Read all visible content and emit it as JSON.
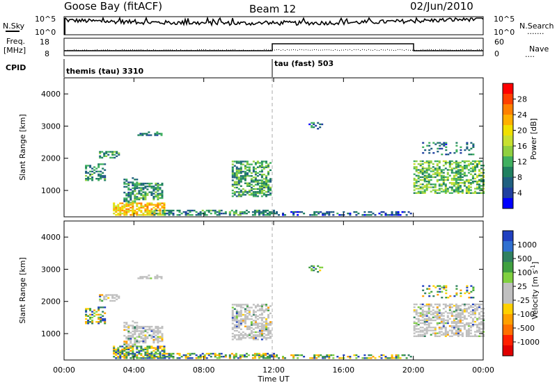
{
  "header": {
    "station": "Goose Bay (fitACF)",
    "beam": "Beam 12",
    "date": "02/Jun/2010"
  },
  "left_labels": {
    "nsky": "N.Sky",
    "freq": "Freq.",
    "freq_unit": "[MHz]",
    "cpid": "CPID"
  },
  "right_labels": {
    "nsearch": "N.Search",
    "nsearch_dots": "·······",
    "nave": "Nave",
    "nave_dots": "····"
  },
  "noise_axis": {
    "left_top": "10^5",
    "left_bottom": "10^0",
    "right_top": "10^5",
    "right_bottom": "10^0"
  },
  "freq_axis": {
    "left_top": "18",
    "left_bottom": "8",
    "right_top": "60",
    "right_bottom": "0"
  },
  "cpid_segments": [
    {
      "label": "themis (tau) 3310",
      "start_hour": 0
    },
    {
      "label": "tau (fast) 503",
      "start_hour": 12
    }
  ],
  "chart_data": [
    {
      "type": "heatmap",
      "title": "Power",
      "ylabel": "Slant Range [km]",
      "colorbar_label": "Power [dB]",
      "colorbar_ticks": [
        "28",
        "24",
        "20",
        "16",
        "12",
        "8",
        "4"
      ],
      "colorbar_colors": [
        "#ff0000",
        "#ff4000",
        "#ff8000",
        "#ffb000",
        "#f0e000",
        "#c8e030",
        "#90d040",
        "#40b060",
        "#208060",
        "#206080",
        "#2040a0",
        "#0000ff"
      ],
      "ylim": [
        180,
        4500
      ],
      "y_ticks": [
        "1000",
        "2000",
        "3000",
        "4000"
      ],
      "x_ticks": [
        "00:00",
        "04:00",
        "08:00",
        "12:00",
        "16:00",
        "20:00",
        "00:00"
      ],
      "xlim_hours": [
        0,
        24
      ]
    },
    {
      "type": "heatmap",
      "title": "Velocity",
      "ylabel": "Slant Range [km]",
      "xlabel": "Time UT",
      "colorbar_label": "Velocity [m s",
      "colorbar_label_sup": "-1",
      "colorbar_label_end": "]",
      "colorbar_ticks": [
        "1000",
        "500",
        "100",
        "25",
        "-25",
        "-100",
        "-500",
        "-1000"
      ],
      "colorbar_colors": [
        "#2040c0",
        "#3070d0",
        "#308060",
        "#40a040",
        "#80d040",
        "#c0c0c0",
        "#c0c0c0",
        "#ffd000",
        "#ffa000",
        "#ff7000",
        "#ff2000",
        "#e00000"
      ],
      "ylim": [
        180,
        4500
      ],
      "y_ticks": [
        "1000",
        "2000",
        "3000",
        "4000"
      ],
      "x_ticks": [
        "00:00",
        "04:00",
        "08:00",
        "12:00",
        "16:00",
        "20:00",
        "00:00"
      ],
      "xlim_hours": [
        0,
        24
      ]
    }
  ],
  "colors": {
    "ground_scatter": "#c0c0c0",
    "frame": "#000000"
  }
}
